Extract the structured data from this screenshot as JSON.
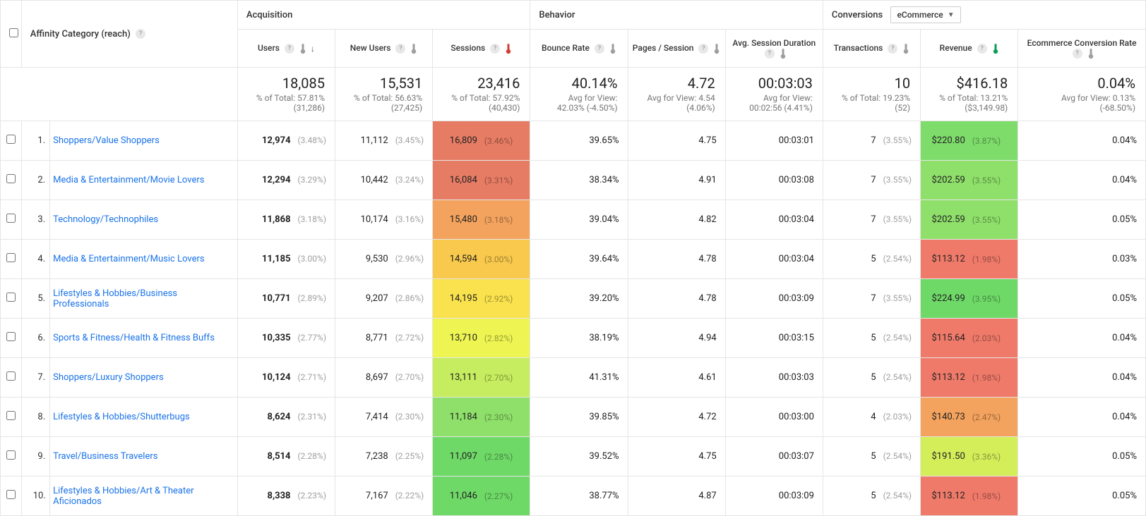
{
  "colors": {
    "border": "#e5e5e5",
    "link": "#1a73e8",
    "muted": "#9e9e9e",
    "text": "#212121",
    "thermo_gray": "#9e9e9e",
    "thermo_red": "#d23f31",
    "thermo_green": "#0f9d58"
  },
  "dimension": {
    "label": "Affinity Category (reach)"
  },
  "groups": {
    "acq": "Acquisition",
    "beh": "Behavior",
    "conv": "Conversions",
    "conv_scope": "eCommerce"
  },
  "headers": {
    "users": "Users",
    "new_users": "New Users",
    "sessions": "Sessions",
    "bounce": "Bounce Rate",
    "pps": "Pages / Session",
    "asd": "Avg. Session Duration",
    "trans": "Transactions",
    "rev": "Revenue",
    "ecr": "Ecommerce Conversion Rate"
  },
  "thermo": {
    "users": "gray",
    "new_users": "gray",
    "sessions": "red",
    "bounce": "gray",
    "pps": "gray",
    "asd": "gray",
    "trans": "gray",
    "rev": "green",
    "ecr": "gray"
  },
  "sort": {
    "col": "users",
    "dir": "desc"
  },
  "totals": {
    "users": {
      "big": "18,085",
      "sub": "% of Total: 57.81% (31,286)"
    },
    "new_users": {
      "big": "15,531",
      "sub": "% of Total: 56.63% (27,425)"
    },
    "sessions": {
      "big": "23,416",
      "sub": "% of Total: 57.92% (40,430)"
    },
    "bounce": {
      "big": "40.14%",
      "sub": "Avg for View: 42.03% (-4.50%)"
    },
    "pps": {
      "big": "4.72",
      "sub": "Avg for View: 4.54 (4.06%)"
    },
    "asd": {
      "big": "00:03:03",
      "sub": "Avg for View: 00:02:56 (4.41%)"
    },
    "trans": {
      "big": "10",
      "sub": "% of Total: 19.23% (52)"
    },
    "rev": {
      "big": "$416.18",
      "sub": "% of Total: 13.21% ($3,149.98)"
    },
    "ecr": {
      "big": "0.04%",
      "sub": "Avg for View: 0.13% (-68.50%)"
    }
  },
  "heat_scale": {
    "sessions": [
      "#e67c64",
      "#e67c64",
      "#f3a35e",
      "#f9c94d",
      "#f9e24d",
      "#eef553",
      "#c6ed5f",
      "#8fe06a",
      "#6fd968",
      "#6fd968"
    ],
    "rev": [
      "#7edc6b",
      "#8fe06a",
      "#8fe06a",
      "#ef7a6a",
      "#6fd968",
      "#ef7a6a",
      "#ef7a6a",
      "#f3a35e",
      "#d4ee5a",
      "#ef7a6a"
    ]
  },
  "rows": [
    {
      "idx": "1.",
      "dim": "Shoppers/Value Shoppers",
      "users": {
        "v": "12,974",
        "p": "(3.48%)"
      },
      "new_users": {
        "v": "11,112",
        "p": "(3.45%)"
      },
      "sessions": {
        "v": "16,809",
        "p": "(3.46%)"
      },
      "bounce": "39.65%",
      "pps": "4.75",
      "asd": "00:03:01",
      "trans": {
        "v": "7",
        "p": "(3.55%)"
      },
      "rev": {
        "v": "$220.80",
        "p": "(3.87%)"
      },
      "ecr": "0.04%"
    },
    {
      "idx": "2.",
      "dim": "Media & Entertainment/Movie Lovers",
      "users": {
        "v": "12,294",
        "p": "(3.29%)"
      },
      "new_users": {
        "v": "10,442",
        "p": "(3.24%)"
      },
      "sessions": {
        "v": "16,084",
        "p": "(3.31%)"
      },
      "bounce": "38.34%",
      "pps": "4.91",
      "asd": "00:03:08",
      "trans": {
        "v": "7",
        "p": "(3.55%)"
      },
      "rev": {
        "v": "$202.59",
        "p": "(3.55%)"
      },
      "ecr": "0.04%"
    },
    {
      "idx": "3.",
      "dim": "Technology/Technophiles",
      "users": {
        "v": "11,868",
        "p": "(3.18%)"
      },
      "new_users": {
        "v": "10,174",
        "p": "(3.16%)"
      },
      "sessions": {
        "v": "15,480",
        "p": "(3.18%)"
      },
      "bounce": "39.04%",
      "pps": "4.82",
      "asd": "00:03:04",
      "trans": {
        "v": "7",
        "p": "(3.55%)"
      },
      "rev": {
        "v": "$202.59",
        "p": "(3.55%)"
      },
      "ecr": "0.05%"
    },
    {
      "idx": "4.",
      "dim": "Media & Entertainment/Music Lovers",
      "users": {
        "v": "11,185",
        "p": "(3.00%)"
      },
      "new_users": {
        "v": "9,530",
        "p": "(2.96%)"
      },
      "sessions": {
        "v": "14,594",
        "p": "(3.00%)"
      },
      "bounce": "39.64%",
      "pps": "4.78",
      "asd": "00:03:04",
      "trans": {
        "v": "5",
        "p": "(2.54%)"
      },
      "rev": {
        "v": "$113.12",
        "p": "(1.98%)"
      },
      "ecr": "0.03%"
    },
    {
      "idx": "5.",
      "dim": "Lifestyles & Hobbies/Business Professionals",
      "users": {
        "v": "10,771",
        "p": "(2.89%)"
      },
      "new_users": {
        "v": "9,207",
        "p": "(2.86%)"
      },
      "sessions": {
        "v": "14,195",
        "p": "(2.92%)"
      },
      "bounce": "39.20%",
      "pps": "4.78",
      "asd": "00:03:09",
      "trans": {
        "v": "7",
        "p": "(3.55%)"
      },
      "rev": {
        "v": "$224.99",
        "p": "(3.95%)"
      },
      "ecr": "0.05%"
    },
    {
      "idx": "6.",
      "dim": "Sports & Fitness/Health & Fitness Buffs",
      "users": {
        "v": "10,335",
        "p": "(2.77%)"
      },
      "new_users": {
        "v": "8,771",
        "p": "(2.72%)"
      },
      "sessions": {
        "v": "13,710",
        "p": "(2.82%)"
      },
      "bounce": "38.19%",
      "pps": "4.94",
      "asd": "00:03:15",
      "trans": {
        "v": "5",
        "p": "(2.54%)"
      },
      "rev": {
        "v": "$115.64",
        "p": "(2.03%)"
      },
      "ecr": "0.04%"
    },
    {
      "idx": "7.",
      "dim": "Shoppers/Luxury Shoppers",
      "users": {
        "v": "10,124",
        "p": "(2.71%)"
      },
      "new_users": {
        "v": "8,697",
        "p": "(2.70%)"
      },
      "sessions": {
        "v": "13,111",
        "p": "(2.70%)"
      },
      "bounce": "41.31%",
      "pps": "4.61",
      "asd": "00:03:03",
      "trans": {
        "v": "5",
        "p": "(2.54%)"
      },
      "rev": {
        "v": "$113.12",
        "p": "(1.98%)"
      },
      "ecr": "0.04%"
    },
    {
      "idx": "8.",
      "dim": "Lifestyles & Hobbies/Shutterbugs",
      "users": {
        "v": "8,624",
        "p": "(2.31%)"
      },
      "new_users": {
        "v": "7,414",
        "p": "(2.30%)"
      },
      "sessions": {
        "v": "11,184",
        "p": "(2.30%)"
      },
      "bounce": "39.85%",
      "pps": "4.72",
      "asd": "00:03:00",
      "trans": {
        "v": "4",
        "p": "(2.03%)"
      },
      "rev": {
        "v": "$140.73",
        "p": "(2.47%)"
      },
      "ecr": "0.04%"
    },
    {
      "idx": "9.",
      "dim": "Travel/Business Travelers",
      "users": {
        "v": "8,514",
        "p": "(2.28%)"
      },
      "new_users": {
        "v": "7,238",
        "p": "(2.25%)"
      },
      "sessions": {
        "v": "11,097",
        "p": "(2.28%)"
      },
      "bounce": "39.52%",
      "pps": "4.75",
      "asd": "00:03:07",
      "trans": {
        "v": "5",
        "p": "(2.54%)"
      },
      "rev": {
        "v": "$191.50",
        "p": "(3.36%)"
      },
      "ecr": "0.05%"
    },
    {
      "idx": "10.",
      "dim": "Lifestyles & Hobbies/Art & Theater Aficionados",
      "users": {
        "v": "8,338",
        "p": "(2.23%)"
      },
      "new_users": {
        "v": "7,167",
        "p": "(2.22%)"
      },
      "sessions": {
        "v": "11,046",
        "p": "(2.27%)"
      },
      "bounce": "38.77%",
      "pps": "4.87",
      "asd": "00:03:09",
      "trans": {
        "v": "5",
        "p": "(2.54%)"
      },
      "rev": {
        "v": "$113.12",
        "p": "(1.98%)"
      },
      "ecr": "0.05%"
    }
  ]
}
